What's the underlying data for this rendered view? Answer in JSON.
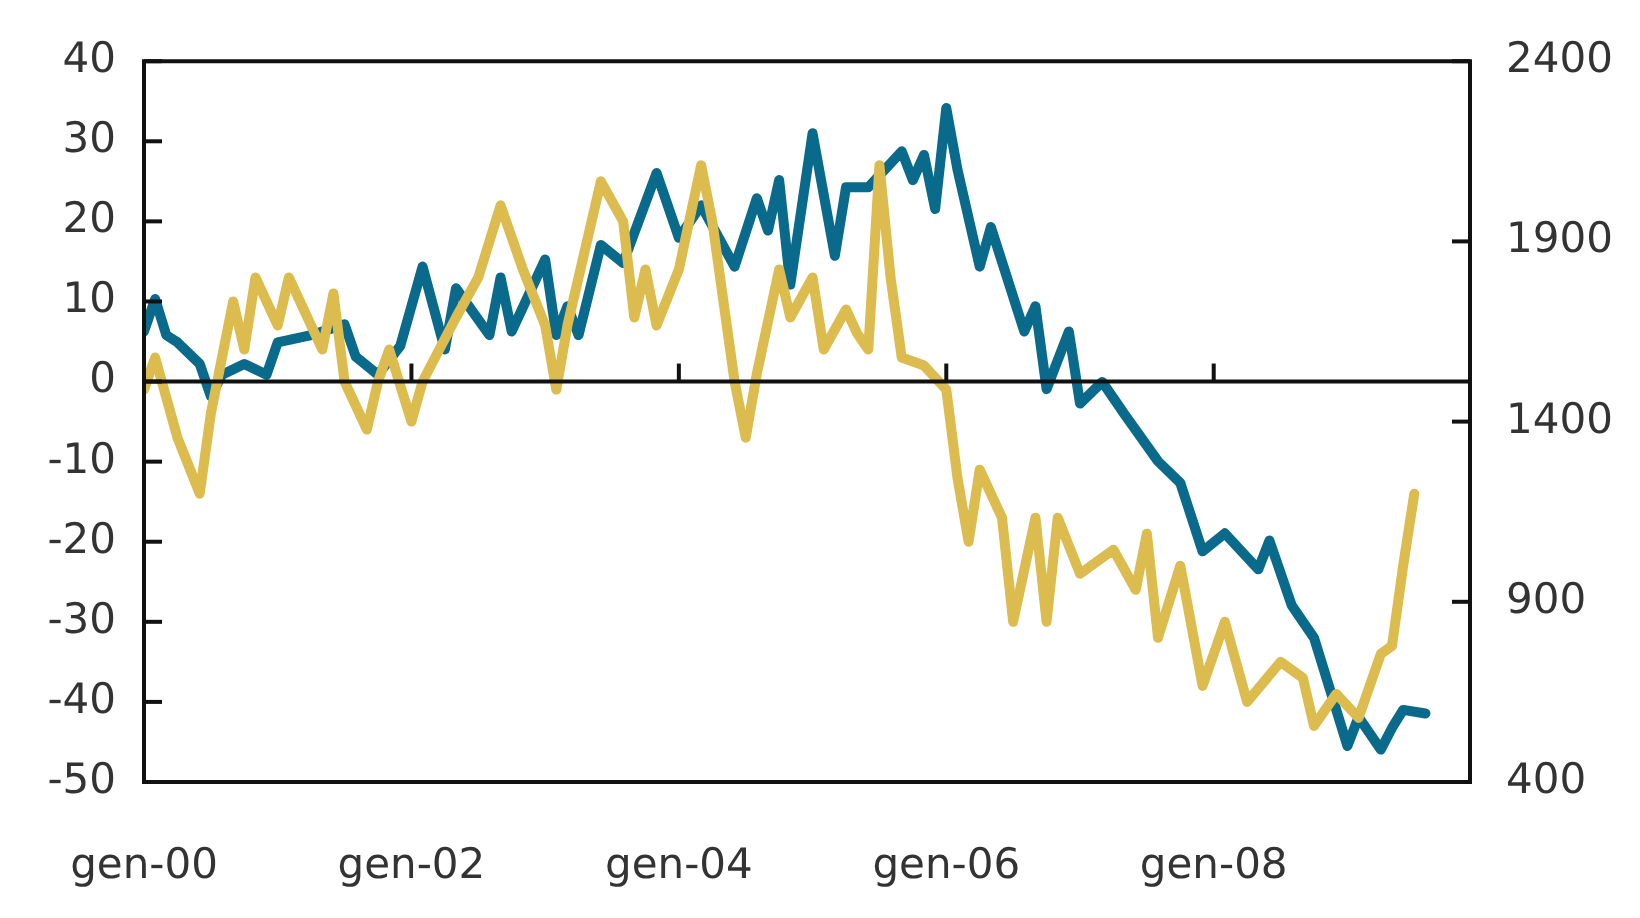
{
  "chart_data": {
    "type": "line",
    "xlim": [
      "2000-01",
      "2009-12"
    ],
    "xticks": [
      {
        "value": "2000-01",
        "label": "gen-00"
      },
      {
        "value": "2002-01",
        "label": "gen-02"
      },
      {
        "value": "2004-01",
        "label": "gen-04"
      },
      {
        "value": "2006-01",
        "label": "gen-06"
      },
      {
        "value": "2008-01",
        "label": "gen-08"
      }
    ],
    "ylim": [
      -50,
      40
    ],
    "yticks": [
      -50,
      -40,
      -30,
      -20,
      -10,
      0,
      10,
      20,
      30,
      40
    ],
    "y2lim": [
      400,
      2400
    ],
    "y2ticks": [
      400,
      900,
      1400,
      1900,
      2400
    ],
    "series": [
      {
        "color": "#dcbb4f",
        "x": [
          "2000-01",
          "2000-02",
          "2000-04",
          "2000-06",
          "2000-07",
          "2000-09",
          "2000-10",
          "2000-11",
          "2001-01",
          "2001-02",
          "2001-04",
          "2001-05",
          "2001-06",
          "2001-07",
          "2001-09",
          "2001-10",
          "2001-11",
          "2002-01",
          "2002-02",
          "2002-05",
          "2002-07",
          "2002-09",
          "2002-11",
          "2003-01",
          "2003-02",
          "2003-03",
          "2003-06",
          "2003-08",
          "2003-09",
          "2003-10",
          "2003-11",
          "2004-01",
          "2004-03",
          "2004-04",
          "2004-06",
          "2004-07",
          "2004-08",
          "2004-10",
          "2004-11",
          "2005-01",
          "2005-02",
          "2005-04",
          "2005-05",
          "2005-06",
          "2005-07",
          "2005-08",
          "2005-09",
          "2005-11",
          "2006-01",
          "2006-02",
          "2006-03",
          "2006-04",
          "2006-06",
          "2006-07",
          "2006-09",
          "2006-10",
          "2006-11",
          "2007-01",
          "2007-04",
          "2007-06",
          "2007-07",
          "2007-08",
          "2007-10",
          "2007-12",
          "2008-02",
          "2008-04",
          "2008-07",
          "2008-09",
          "2008-10",
          "2008-12",
          "2009-02",
          "2009-04",
          "2009-05",
          "2009-06",
          "2009-07"
        ],
        "values": [
          -1,
          3,
          -7,
          -14,
          -4,
          10,
          4,
          13,
          7,
          13,
          7,
          4,
          11,
          0,
          -6,
          0,
          4,
          -5,
          0,
          8,
          13,
          22,
          14,
          7,
          -1,
          7,
          25,
          20,
          8,
          14,
          7,
          14,
          27,
          20,
          0,
          -7,
          1,
          14,
          8,
          13,
          4,
          9,
          6,
          4,
          27,
          13,
          3,
          2,
          -1,
          -12,
          -20,
          -11,
          -17,
          -30,
          -17,
          -30,
          -17,
          -24,
          -21,
          -26,
          -19,
          -32,
          -23,
          -38,
          -30,
          -40,
          -35,
          -37,
          -43,
          -39,
          -42,
          -34,
          -33,
          -23,
          -14
        ]
      },
      {
        "color": "#0a6a8c",
        "axis": "y2",
        "x": [
          "2000-01",
          "2000-02",
          "2000-03",
          "2000-04",
          "2000-06",
          "2000-07",
          "2000-08",
          "2000-10",
          "2000-12",
          "2001-01",
          "2001-04",
          "2001-06",
          "2001-07",
          "2001-08",
          "2001-10",
          "2001-12",
          "2002-02",
          "2002-04",
          "2002-05",
          "2002-08",
          "2002-09",
          "2002-10",
          "2003-01",
          "2003-02",
          "2003-03",
          "2003-04",
          "2003-06",
          "2003-08",
          "2003-11",
          "2004-01",
          "2004-03",
          "2004-06",
          "2004-08",
          "2004-09",
          "2004-10",
          "2004-11",
          "2005-01",
          "2005-03",
          "2005-04",
          "2005-06",
          "2005-09",
          "2005-10",
          "2005-11",
          "2005-12",
          "2006-01",
          "2006-02",
          "2006-04",
          "2006-05",
          "2006-08",
          "2006-09",
          "2006-10",
          "2006-12",
          "2007-01",
          "2007-03",
          "2007-05",
          "2007-08",
          "2007-10",
          "2007-12",
          "2008-02",
          "2008-05",
          "2008-06",
          "2008-08",
          "2008-10",
          "2009-01",
          "2009-02",
          "2009-04",
          "2009-05",
          "2009-06",
          "2009-08"
        ],
        "values": [
          1650,
          1740,
          1640,
          1620,
          1560,
          1470,
          1530,
          1560,
          1530,
          1620,
          1640,
          1660,
          1670,
          1580,
          1530,
          1610,
          1830,
          1600,
          1770,
          1640,
          1800,
          1650,
          1850,
          1640,
          1720,
          1640,
          1890,
          1840,
          2090,
          1910,
          2000,
          1830,
          2020,
          1930,
          2070,
          1780,
          2200,
          1860,
          2050,
          2050,
          2150,
          2070,
          2140,
          1990,
          2270,
          2100,
          1830,
          1940,
          1650,
          1720,
          1490,
          1650,
          1450,
          1510,
          1420,
          1290,
          1230,
          1040,
          1090,
          990,
          1070,
          890,
          800,
          500,
          580,
          490,
          550,
          600,
          590
        ]
      }
    ]
  }
}
